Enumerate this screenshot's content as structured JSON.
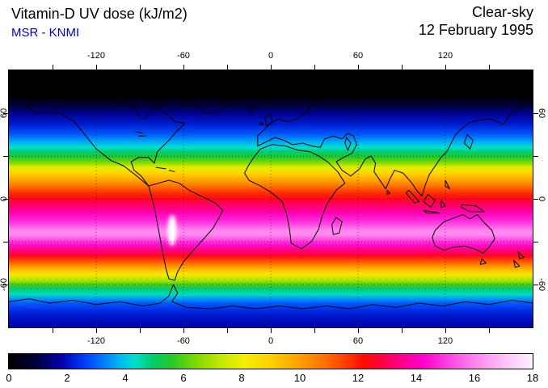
{
  "header": {
    "title": "Vitamin-D UV dose (kJ/m2)",
    "source": "MSR - KNMI",
    "source_color": "#0000cc",
    "condition": "Clear-sky",
    "date": "12 February 1995"
  },
  "axes": {
    "lon_tick_values": [
      -150,
      -120,
      -90,
      -60,
      -30,
      0,
      30,
      60,
      90,
      120,
      150
    ],
    "lon_label_values": [
      -120,
      -60,
      0,
      60,
      120
    ],
    "lon_labels": [
      "-120",
      "-60",
      "0",
      "60",
      "120"
    ],
    "lat_tick_values": [
      60,
      30,
      0,
      -30,
      -60
    ],
    "lat_label_values": [
      60,
      0,
      -60
    ],
    "lat_labels": [
      "60",
      "0",
      "-60"
    ]
  },
  "colorbar_labels": [
    "0",
    "2",
    "4",
    "6",
    "8",
    "10",
    "12",
    "14",
    "16",
    "18"
  ],
  "chart_data": {
    "type": "heatmap",
    "title": "Vitamin-D UV dose (kJ/m2)",
    "subtitle": "MSR - KNMI",
    "condition": "Clear-sky",
    "date": "12 February 1995",
    "units": "kJ/m2",
    "projection": "equirectangular",
    "lon_range": [
      -180,
      180
    ],
    "lat_range": [
      -90,
      90
    ],
    "grid": "dashed, 60 deg lon x 30 deg lat",
    "colorbar": {
      "min": 0,
      "max": 18,
      "ticks": [
        0,
        2,
        4,
        6,
        8,
        10,
        12,
        14,
        16,
        18
      ],
      "orientation": "horizontal-bottom",
      "stops": [
        {
          "value": 0.0,
          "color": "#000000"
        },
        {
          "value": 0.9,
          "color": "#000038"
        },
        {
          "value": 1.8,
          "color": "#0000a8"
        },
        {
          "value": 2.5,
          "color": "#0034f4"
        },
        {
          "value": 3.2,
          "color": "#0078ff"
        },
        {
          "value": 3.8,
          "color": "#00b4f0"
        },
        {
          "value": 4.3,
          "color": "#00e0d0"
        },
        {
          "value": 4.9,
          "color": "#00cc70"
        },
        {
          "value": 5.6,
          "color": "#28c828"
        },
        {
          "value": 6.4,
          "color": "#7cd800"
        },
        {
          "value": 7.3,
          "color": "#c4e800"
        },
        {
          "value": 8.1,
          "color": "#f4f000"
        },
        {
          "value": 9.0,
          "color": "#ffd000"
        },
        {
          "value": 9.9,
          "color": "#ffa400"
        },
        {
          "value": 10.8,
          "color": "#ff7400"
        },
        {
          "value": 11.6,
          "color": "#ff3c00"
        },
        {
          "value": 12.2,
          "color": "#ff0c00"
        },
        {
          "value": 12.8,
          "color": "#ff0044"
        },
        {
          "value": 13.5,
          "color": "#ff008c"
        },
        {
          "value": 14.2,
          "color": "#ff00cc"
        },
        {
          "value": 15.0,
          "color": "#ff3ce0"
        },
        {
          "value": 16.0,
          "color": "#ff85ee"
        },
        {
          "value": 17.0,
          "color": "#ffc0f6"
        },
        {
          "value": 18.0,
          "color": "#fff0ff"
        }
      ]
    },
    "zonal_profile": [
      {
        "lat": 90,
        "dose": 0
      },
      {
        "lat": 72,
        "dose": 0
      },
      {
        "lat": 66,
        "dose": 0.8
      },
      {
        "lat": 60,
        "dose": 1.6
      },
      {
        "lat": 52,
        "dose": 2.2
      },
      {
        "lat": 45,
        "dose": 2.9
      },
      {
        "lat": 40,
        "dose": 3.7
      },
      {
        "lat": 36,
        "dose": 4.3
      },
      {
        "lat": 33,
        "dose": 4.9
      },
      {
        "lat": 29,
        "dose": 5.6
      },
      {
        "lat": 25,
        "dose": 6.6
      },
      {
        "lat": 22,
        "dose": 7.8
      },
      {
        "lat": 18,
        "dose": 8.9
      },
      {
        "lat": 14,
        "dose": 9.7
      },
      {
        "lat": 9,
        "dose": 10.8
      },
      {
        "lat": 4,
        "dose": 11.8
      },
      {
        "lat": 0,
        "dose": 12.5
      },
      {
        "lat": -5,
        "dose": 13.2
      },
      {
        "lat": -9,
        "dose": 13.8
      },
      {
        "lat": -14,
        "dose": 14.6
      },
      {
        "lat": -18,
        "dose": 15.2
      },
      {
        "lat": -22,
        "dose": 16.0
      },
      {
        "lat": -25,
        "dose": 16.1
      },
      {
        "lat": -28,
        "dose": 15.4
      },
      {
        "lat": -32,
        "dose": 14.4
      },
      {
        "lat": -36,
        "dose": 13.4
      },
      {
        "lat": -40,
        "dose": 12.5
      },
      {
        "lat": -43,
        "dose": 11.5
      },
      {
        "lat": -46,
        "dose": 10.6
      },
      {
        "lat": -50,
        "dose": 9.3
      },
      {
        "lat": -53,
        "dose": 8.3
      },
      {
        "lat": -57,
        "dose": 7.0
      },
      {
        "lat": -60,
        "dose": 5.9
      },
      {
        "lat": -63,
        "dose": 4.9
      },
      {
        "lat": -67,
        "dose": 4.4
      },
      {
        "lat": -70,
        "dose": 3.5
      },
      {
        "lat": -73,
        "dose": 2.9
      },
      {
        "lat": -78,
        "dose": 2.4
      },
      {
        "lat": -82,
        "dose": 2.1
      },
      {
        "lat": -90,
        "dose": 1.8
      }
    ],
    "anomalies": [
      {
        "name": "Andes high-altitude maximum",
        "lon": -68,
        "lat": -22,
        "approx_dose": 18
      }
    ]
  }
}
